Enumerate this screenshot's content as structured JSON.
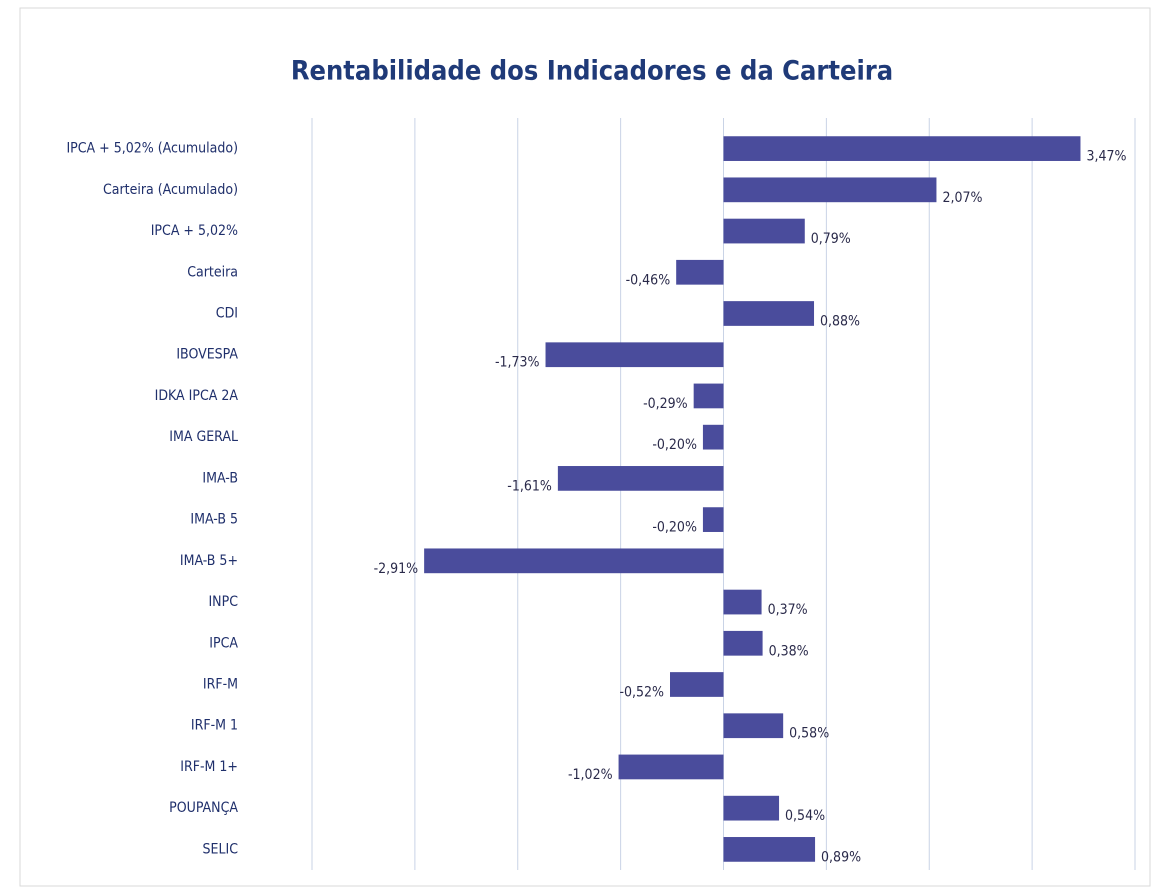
{
  "chart_data": {
    "type": "hbar",
    "title": "Rentabilidade dos Indicadores e da Carteira",
    "categories": [
      "IPCA + 5,02% (Acumulado)",
      "Carteira (Acumulado)",
      "IPCA + 5,02%",
      "Carteira",
      "CDI",
      "IBOVESPA",
      "IDKA IPCA 2A",
      "IMA GERAL",
      "IMA-B",
      "IMA-B 5",
      "IMA-B 5+",
      "INPC",
      "IPCA",
      "IRF-M",
      "IRF-M 1",
      "IRF-M 1+",
      "POUPANÇA",
      "SELIC"
    ],
    "values": [
      3.47,
      2.07,
      0.79,
      -0.46,
      0.88,
      -1.73,
      -0.29,
      -0.2,
      -1.61,
      -0.2,
      -2.91,
      0.37,
      0.38,
      -0.52,
      0.58,
      -1.02,
      0.54,
      0.89
    ],
    "value_labels": [
      "3,47%",
      "2,07%",
      "0,79%",
      "-0,46%",
      "0,88%",
      "-1,73%",
      "-0,29%",
      "-0,20%",
      "-1,61%",
      "-0,20%",
      "-2,91%",
      "0,37%",
      "0,38%",
      "-0,52%",
      "0,58%",
      "-1,02%",
      "0,54%",
      "0,89%"
    ],
    "color": "#4a4c9c",
    "xlim": [
      -4,
      4
    ],
    "xticks": [
      -4,
      -3,
      -2,
      -1,
      0,
      1,
      2,
      3,
      4
    ],
    "grid": true
  }
}
